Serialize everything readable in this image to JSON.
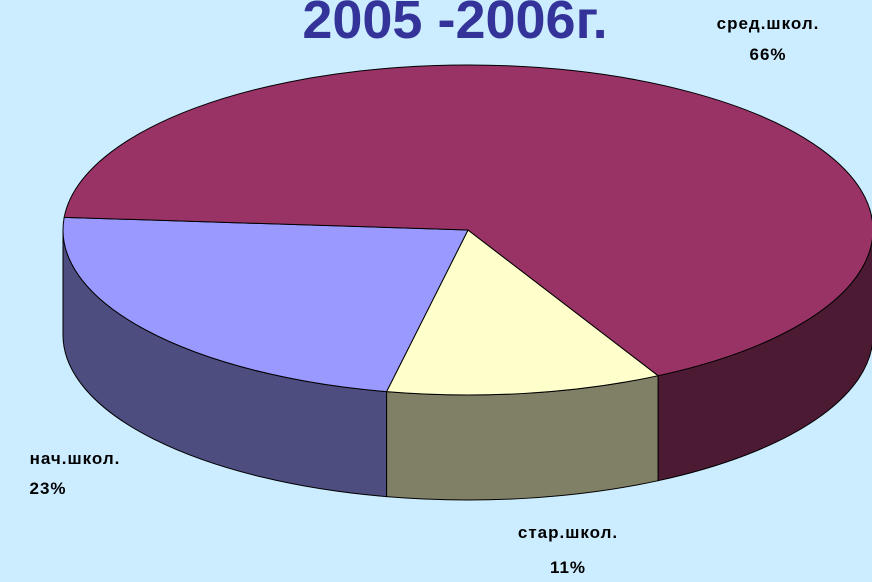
{
  "chart_data": {
    "type": "pie3d",
    "title": "2005 -2006г.",
    "categories": [
      "стар.школ.",
      "нач.школ.",
      "сред.школ."
    ],
    "values": [
      11,
      23,
      66
    ],
    "value_labels": [
      "11%",
      "23%",
      "66%"
    ],
    "colors": [
      "#ffffcc",
      "#9999ff",
      "#993366"
    ]
  }
}
